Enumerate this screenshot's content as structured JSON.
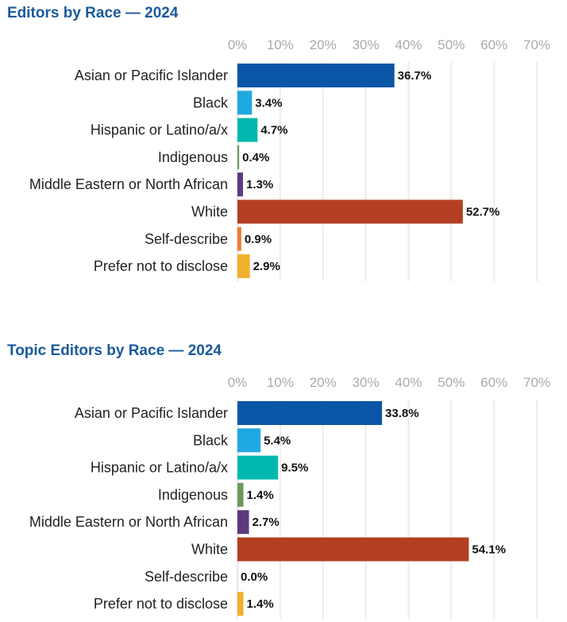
{
  "chart_data": [
    {
      "type": "bar",
      "orientation": "horizontal",
      "title": "Editors by Race — 2024",
      "xlim": [
        0,
        70
      ],
      "x_ticks": [
        "0%",
        "10%",
        "20%",
        "30%",
        "40%",
        "50%",
        "60%",
        "70%"
      ],
      "tick_values": [
        0,
        10,
        20,
        30,
        40,
        50,
        60,
        70
      ],
      "grid": true,
      "categories": [
        "Asian or Pacific Islander",
        "Black",
        "Hispanic or Latino/a/x",
        "Indigenous",
        "Middle Eastern or North African",
        "White",
        "Self-describe",
        "Prefer not to disclose"
      ],
      "values": [
        36.7,
        3.4,
        4.7,
        0.4,
        1.3,
        52.7,
        0.9,
        2.9
      ],
      "labels": [
        "36.7%",
        "3.4%",
        "4.7%",
        "0.4%",
        "1.3%",
        "52.7%",
        "0.9%",
        "2.9%"
      ],
      "colors": [
        "#0a55a6",
        "#1fa9e1",
        "#00b8ad",
        "#6a9a5b",
        "#5b3a7e",
        "#b43f22",
        "#ee7d2f",
        "#f0b12b"
      ]
    },
    {
      "type": "bar",
      "orientation": "horizontal",
      "title": "Topic Editors by Race — 2024",
      "xlim": [
        0,
        70
      ],
      "x_ticks": [
        "0%",
        "10%",
        "20%",
        "30%",
        "40%",
        "50%",
        "60%",
        "70%"
      ],
      "tick_values": [
        0,
        10,
        20,
        30,
        40,
        50,
        60,
        70
      ],
      "grid": true,
      "categories": [
        "Asian or Pacific Islander",
        "Black",
        "Hispanic or Latino/a/x",
        "Indigenous",
        "Middle Eastern or North African",
        "White",
        "Self-describe",
        "Prefer not to disclose"
      ],
      "values": [
        33.8,
        5.4,
        9.5,
        1.4,
        2.7,
        54.1,
        0.0,
        1.4
      ],
      "labels": [
        "33.8%",
        "5.4%",
        "9.5%",
        "1.4%",
        "2.7%",
        "54.1%",
        "0.0%",
        "1.4%"
      ],
      "colors": [
        "#0a55a6",
        "#1fa9e1",
        "#00b8ad",
        "#6a9a5b",
        "#5b3a7e",
        "#b43f22",
        "#ee7d2f",
        "#f0b12b"
      ]
    }
  ]
}
